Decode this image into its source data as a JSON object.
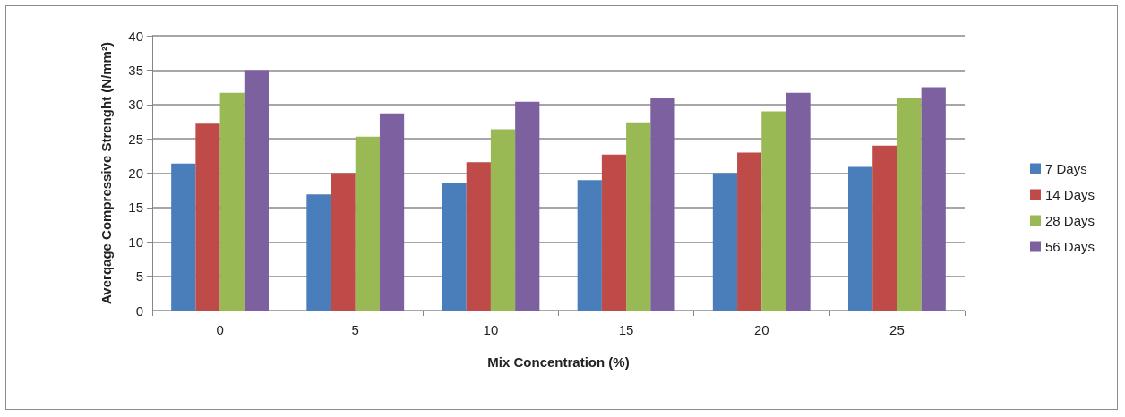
{
  "chart_data": {
    "type": "bar",
    "xlabel": "Mix Concentration (%)",
    "ylabel": "Averqage Compressive Strenght (N/mm²)",
    "categories": [
      "0",
      "5",
      "10",
      "15",
      "20",
      "25"
    ],
    "series": [
      {
        "name": "7 Days",
        "color": "#4a7ebb",
        "values": [
          21.4,
          16.9,
          18.5,
          19.0,
          20.0,
          20.9
        ]
      },
      {
        "name": "14 Days",
        "color": "#be4b48",
        "values": [
          27.2,
          20.0,
          21.6,
          22.7,
          23.0,
          24.0
        ]
      },
      {
        "name": "28 Days",
        "color": "#98b954",
        "values": [
          31.7,
          25.3,
          26.4,
          27.4,
          29.0,
          30.9
        ]
      },
      {
        "name": "56 Days",
        "color": "#7d60a0",
        "values": [
          35.0,
          28.7,
          30.4,
          30.9,
          31.7,
          32.5
        ]
      }
    ],
    "ylim": [
      0,
      40
    ],
    "yticks": [
      0,
      5,
      10,
      15,
      20,
      25,
      30,
      35,
      40
    ],
    "grid": "y",
    "legend": "right"
  }
}
